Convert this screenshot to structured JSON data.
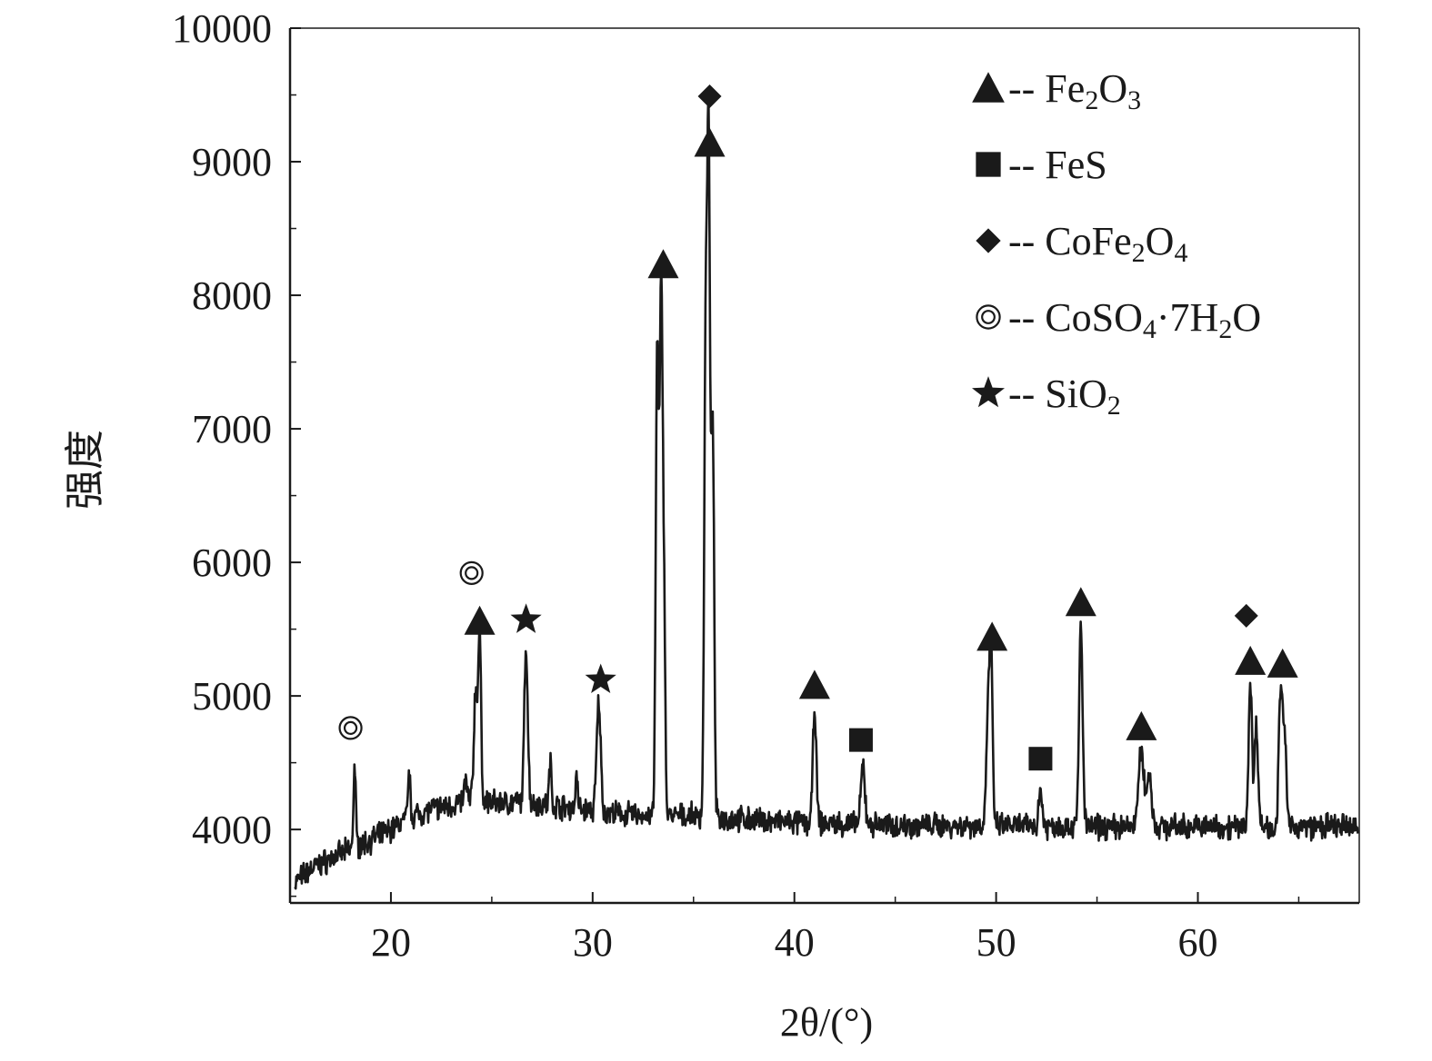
{
  "chart_data": {
    "type": "line",
    "xlabel": "2θ/(°)",
    "ylabel": "强度",
    "xlim": [
      15,
      68
    ],
    "ylim": [
      3450,
      10000
    ],
    "xticks": [
      20,
      30,
      40,
      50,
      60
    ],
    "yticks": [
      4000,
      5000,
      6000,
      7000,
      8000,
      9000,
      10000
    ],
    "grid": false,
    "legend_position": "top-right",
    "line_color": "#1a1a1a",
    "legend": [
      {
        "marker": "triangle",
        "label": "-- Fe2O3",
        "base": "-- Fe",
        "sub1": "2",
        "mid": "O",
        "sub2": "3",
        "tail": ""
      },
      {
        "marker": "square",
        "label": "-- FeS",
        "base": "-- FeS",
        "sub1": "",
        "mid": "",
        "sub2": "",
        "tail": ""
      },
      {
        "marker": "diamond",
        "label": "-- CoFe2O4",
        "base": "-- CoFe",
        "sub1": "2",
        "mid": "O",
        "sub2": "4",
        "tail": ""
      },
      {
        "marker": "double-circle",
        "label": "-- CoSO4·7H2O",
        "base": "-- CoSO",
        "sub1": "4",
        "mid": "·7H",
        "sub2": "2",
        "tail": "O"
      },
      {
        "marker": "star",
        "label": "-- SiO2",
        "base": "-- SiO",
        "sub1": "2",
        "mid": "",
        "sub2": "",
        "tail": ""
      }
    ],
    "baseline": [
      [
        15.2,
        3600
      ],
      [
        16,
        3700
      ],
      [
        17,
        3780
      ],
      [
        18,
        3850
      ],
      [
        19,
        3920
      ],
      [
        20,
        4000
      ],
      [
        21,
        4100
      ],
      [
        22,
        4150
      ],
      [
        23,
        4180
      ],
      [
        24,
        4230
      ],
      [
        25,
        4200
      ],
      [
        27,
        4200
      ],
      [
        29,
        4160
      ],
      [
        31,
        4120
      ],
      [
        33,
        4100
      ],
      [
        35,
        4100
      ],
      [
        37,
        4080
      ],
      [
        40,
        4050
      ],
      [
        45,
        4030
      ],
      [
        50,
        4030
      ],
      [
        55,
        4020
      ],
      [
        60,
        4020
      ],
      [
        65,
        4020
      ],
      [
        68,
        4020
      ]
    ],
    "peaks": [
      {
        "x": 18.2,
        "y": 4480,
        "w": 0.08
      },
      {
        "x": 20.9,
        "y": 4420,
        "w": 0.08
      },
      {
        "x": 23.7,
        "y": 4380,
        "w": 0.08
      },
      {
        "x": 24.2,
        "y": 5030,
        "w": 0.12
      },
      {
        "x": 24.4,
        "y": 5420,
        "w": 0.1
      },
      {
        "x": 26.7,
        "y": 5370,
        "w": 0.12
      },
      {
        "x": 27.9,
        "y": 4500,
        "w": 0.08
      },
      {
        "x": 29.2,
        "y": 4400,
        "w": 0.08
      },
      {
        "x": 30.3,
        "y": 4950,
        "w": 0.14
      },
      {
        "x": 33.2,
        "y": 7550,
        "w": 0.1
      },
      {
        "x": 33.4,
        "y": 8070,
        "w": 0.11
      },
      {
        "x": 33.55,
        "y": 5350,
        "w": 0.08
      },
      {
        "x": 35.6,
        "y": 7550,
        "w": 0.1
      },
      {
        "x": 35.75,
        "y": 8980,
        "w": 0.1
      },
      {
        "x": 35.95,
        "y": 7100,
        "w": 0.1
      },
      {
        "x": 41.0,
        "y": 4900,
        "w": 0.12
      },
      {
        "x": 43.4,
        "y": 4470,
        "w": 0.14
      },
      {
        "x": 49.6,
        "y": 4900,
        "w": 0.12
      },
      {
        "x": 49.75,
        "y": 5280,
        "w": 0.1
      },
      {
        "x": 52.2,
        "y": 4300,
        "w": 0.12
      },
      {
        "x": 54.2,
        "y": 5550,
        "w": 0.12
      },
      {
        "x": 57.2,
        "y": 4580,
        "w": 0.2
      },
      {
        "x": 57.6,
        "y": 4420,
        "w": 0.15
      },
      {
        "x": 62.6,
        "y": 5100,
        "w": 0.12
      },
      {
        "x": 62.9,
        "y": 4800,
        "w": 0.12
      },
      {
        "x": 64.1,
        "y": 5050,
        "w": 0.12
      },
      {
        "x": 64.3,
        "y": 4700,
        "w": 0.12
      }
    ],
    "annotations": [
      {
        "marker": "double-circle",
        "x": 18.0,
        "y": 4760
      },
      {
        "marker": "double-circle",
        "x": 24.0,
        "y": 5920
      },
      {
        "marker": "triangle",
        "x": 24.4,
        "y": 5560
      },
      {
        "marker": "star",
        "x": 26.7,
        "y": 5570
      },
      {
        "marker": "star",
        "x": 30.4,
        "y": 5120
      },
      {
        "marker": "triangle",
        "x": 33.5,
        "y": 8230
      },
      {
        "marker": "diamond",
        "x": 35.8,
        "y": 9490
      },
      {
        "marker": "triangle",
        "x": 35.8,
        "y": 9140
      },
      {
        "marker": "triangle",
        "x": 41.0,
        "y": 5080
      },
      {
        "marker": "square",
        "x": 43.3,
        "y": 4670
      },
      {
        "marker": "triangle",
        "x": 49.8,
        "y": 5440
      },
      {
        "marker": "square",
        "x": 52.2,
        "y": 4530
      },
      {
        "marker": "triangle",
        "x": 54.2,
        "y": 5700
      },
      {
        "marker": "triangle",
        "x": 57.2,
        "y": 4770
      },
      {
        "marker": "diamond",
        "x": 62.4,
        "y": 5600
      },
      {
        "marker": "triangle",
        "x": 62.6,
        "y": 5260
      },
      {
        "marker": "triangle",
        "x": 64.2,
        "y": 5240
      }
    ]
  }
}
